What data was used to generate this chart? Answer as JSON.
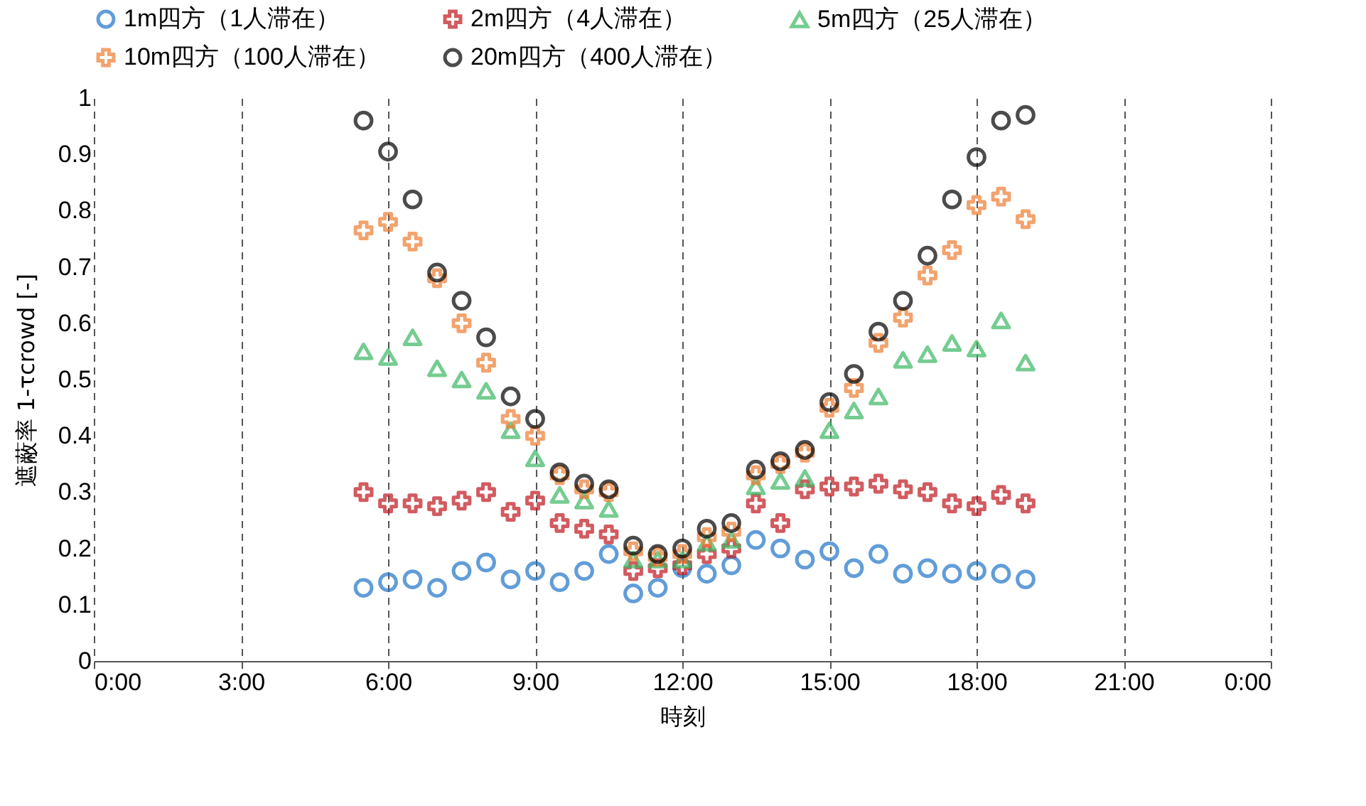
{
  "chart_data": {
    "type": "scatter",
    "xlabel": "時刻",
    "ylabel": "遮蔽率 1-τcrowd [-]",
    "x": [
      5.5,
      6,
      6.5,
      7,
      7.5,
      8,
      8.5,
      9,
      9.5,
      10,
      10.5,
      11,
      11.5,
      12,
      12.5,
      13,
      13.5,
      14,
      14.5,
      15,
      15.5,
      16,
      16.5,
      17,
      17.5,
      18,
      18.5,
      19
    ],
    "series": [
      {
        "name": "1m四方（1人滞在）",
        "color": "#1f74c8",
        "marker": "circle",
        "values": [
          0.13,
          0.14,
          0.145,
          0.13,
          0.16,
          0.175,
          0.145,
          0.16,
          0.14,
          0.16,
          0.19,
          0.12,
          0.13,
          0.165,
          0.155,
          0.17,
          0.215,
          0.2,
          0.18,
          0.195,
          0.165,
          0.19,
          0.155,
          0.165,
          0.155,
          0.16,
          0.155,
          0.145
        ]
      },
      {
        "name": "2m四方（4人滞在）",
        "color": "#c0171d",
        "marker": "cross",
        "values": [
          0.3,
          0.28,
          0.28,
          0.275,
          0.285,
          0.3,
          0.265,
          0.285,
          0.245,
          0.235,
          0.225,
          0.16,
          0.165,
          0.17,
          0.19,
          0.2,
          0.28,
          0.245,
          0.305,
          0.31,
          0.31,
          0.315,
          0.305,
          0.3,
          0.28,
          0.275,
          0.295,
          0.28
        ]
      },
      {
        "name": "5m四方（25人滞在）",
        "color": "#3cb763",
        "marker": "triangle",
        "values": [
          0.55,
          0.54,
          0.575,
          0.52,
          0.5,
          0.48,
          0.41,
          0.36,
          0.295,
          0.285,
          0.27,
          0.18,
          0.18,
          0.18,
          0.21,
          0.215,
          0.31,
          0.32,
          0.325,
          0.41,
          0.445,
          0.47,
          0.535,
          0.545,
          0.565,
          0.555,
          0.605,
          0.53
        ]
      },
      {
        "name": "10m四方（100人滞在）",
        "color": "#ed7d31",
        "marker": "cross",
        "values": [
          0.765,
          0.78,
          0.745,
          0.68,
          0.6,
          0.53,
          0.43,
          0.4,
          0.33,
          0.305,
          0.3,
          0.195,
          0.185,
          0.19,
          0.22,
          0.23,
          0.33,
          0.35,
          0.37,
          0.45,
          0.485,
          0.565,
          0.61,
          0.685,
          0.73,
          0.81,
          0.825,
          0.785
        ]
      },
      {
        "name": "20m四方（400人滞在）",
        "color": "#000000",
        "marker": "circle",
        "values": [
          0.96,
          0.905,
          0.82,
          0.69,
          0.64,
          0.575,
          0.47,
          0.43,
          0.335,
          0.315,
          0.305,
          0.205,
          0.19,
          0.2,
          0.235,
          0.245,
          0.34,
          0.355,
          0.375,
          0.46,
          0.51,
          0.585,
          0.64,
          0.72,
          0.82,
          0.895,
          0.96,
          0.97
        ]
      }
    ],
    "xlim": [
      0,
      24
    ],
    "xticks": [
      {
        "value": 0,
        "label": "0:00"
      },
      {
        "value": 3,
        "label": "3:00"
      },
      {
        "value": 6,
        "label": "6:00"
      },
      {
        "value": 9,
        "label": "9:00"
      },
      {
        "value": 12,
        "label": "12:00"
      },
      {
        "value": 15,
        "label": "15:00"
      },
      {
        "value": 18,
        "label": "18:00"
      },
      {
        "value": 21,
        "label": "21:00"
      },
      {
        "value": 24,
        "label": "0:00"
      }
    ],
    "ylim": [
      0,
      1
    ],
    "yticks": [
      0,
      0.1,
      0.2,
      0.3,
      0.4,
      0.5,
      0.6,
      0.7,
      0.8,
      0.9,
      1
    ],
    "grid": "x",
    "legend": "top"
  }
}
